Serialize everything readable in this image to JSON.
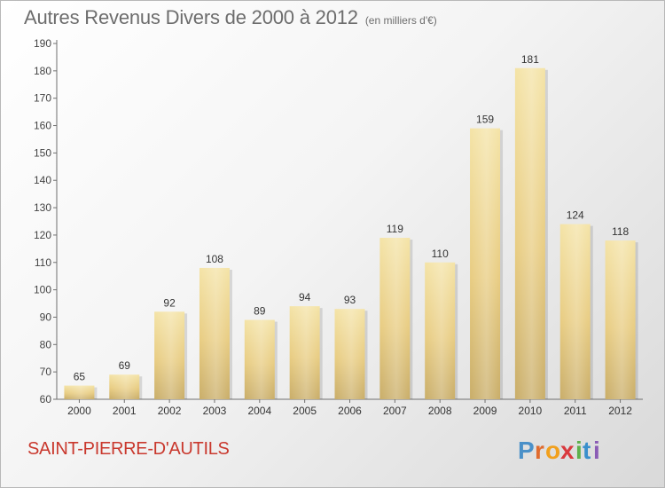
{
  "title": "Autres Revenus Divers de 2000 à 2012",
  "subtitle": "(en milliers d'€)",
  "location": "SAINT-PIERRE-D'AUTILS",
  "logo_text": "Proxiti",
  "colors": {
    "bar": "#e8cc81",
    "bar_light": "#f4e3a6",
    "bar_dark": "#c9ad68",
    "title": "#6d6d6d",
    "location": "#c9382d"
  },
  "chart_data": {
    "type": "bar",
    "categories": [
      "2000",
      "2001",
      "2002",
      "2003",
      "2004",
      "2005",
      "2006",
      "2007",
      "2008",
      "2009",
      "2010",
      "2011",
      "2012"
    ],
    "values": [
      65,
      69,
      92,
      108,
      89,
      94,
      93,
      119,
      110,
      159,
      181,
      124,
      118
    ],
    "ylim": [
      60,
      190
    ],
    "yticks": [
      60,
      70,
      80,
      90,
      100,
      110,
      120,
      130,
      140,
      150,
      160,
      170,
      180,
      190
    ],
    "grid": false,
    "data_labels": true
  }
}
